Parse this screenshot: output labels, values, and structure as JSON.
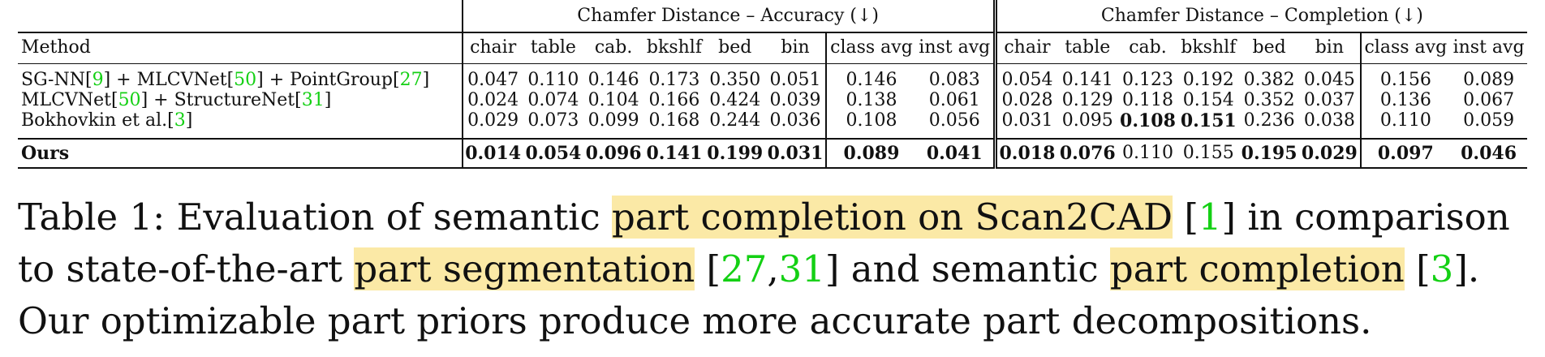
{
  "table": {
    "group_headers": {
      "accuracy": "Chamfer Distance – Accuracy (↓)",
      "completion": "Chamfer Distance – Completion (↓)"
    },
    "method_header": "Method",
    "columns": [
      "chair",
      "table",
      "cab.",
      "bkshlf",
      "bed",
      "bin",
      "class avg",
      "inst avg"
    ],
    "rows": [
      {
        "method_parts": [
          "SG-NN",
          "9",
          " + MLCVNet",
          "50",
          " + PointGroup",
          "27",
          ""
        ],
        "accuracy": [
          "0.047",
          "0.110",
          "0.146",
          "0.173",
          "0.350",
          "0.051",
          "0.146",
          "0.083"
        ],
        "completion": [
          "0.054",
          "0.141",
          "0.123",
          "0.192",
          "0.382",
          "0.045",
          "0.156",
          "0.089"
        ]
      },
      {
        "method_parts": [
          "MLCVNet",
          "50",
          " + StructureNet",
          "31",
          ""
        ],
        "accuracy": [
          "0.024",
          "0.074",
          "0.104",
          "0.166",
          "0.424",
          "0.039",
          "0.138",
          "0.061"
        ],
        "completion": [
          "0.028",
          "0.129",
          "0.118",
          "0.154",
          "0.352",
          "0.037",
          "0.136",
          "0.067"
        ]
      },
      {
        "method_parts": [
          "Bokhovkin et al.",
          "3",
          ""
        ],
        "accuracy": [
          "0.029",
          "0.073",
          "0.099",
          "0.168",
          "0.244",
          "0.036",
          "0.108",
          "0.056"
        ],
        "completion": [
          "0.031",
          "0.095",
          "0.108",
          "0.151",
          "0.236",
          "0.038",
          "0.110",
          "0.059"
        ]
      },
      {
        "method": "Ours",
        "accuracy": [
          "0.014",
          "0.054",
          "0.096",
          "0.141",
          "0.199",
          "0.031",
          "0.089",
          "0.041"
        ],
        "completion": [
          "0.018",
          "0.076",
          "0.110",
          "0.155",
          "0.195",
          "0.029",
          "0.097",
          "0.046"
        ]
      }
    ]
  },
  "caption": {
    "label": "Table 1:",
    "t1": " Evaluation of semantic ",
    "h1": "part completion on Scan2CAD",
    "t2": " [",
    "c1": "1",
    "t3": "] in comparison to state-of-the-art ",
    "h2": "part segmentation",
    "t4": " [",
    "c2": "27",
    "t5": ",",
    "c3": "31",
    "t6": "] and semantic ",
    "h3": "part completion",
    "t7": " [",
    "c4": "3",
    "t8": "]. Our optimizable part priors produce more accurate part decompositions."
  },
  "colors": {
    "citation": "#14d014",
    "highlight": "#fbe9a6"
  }
}
